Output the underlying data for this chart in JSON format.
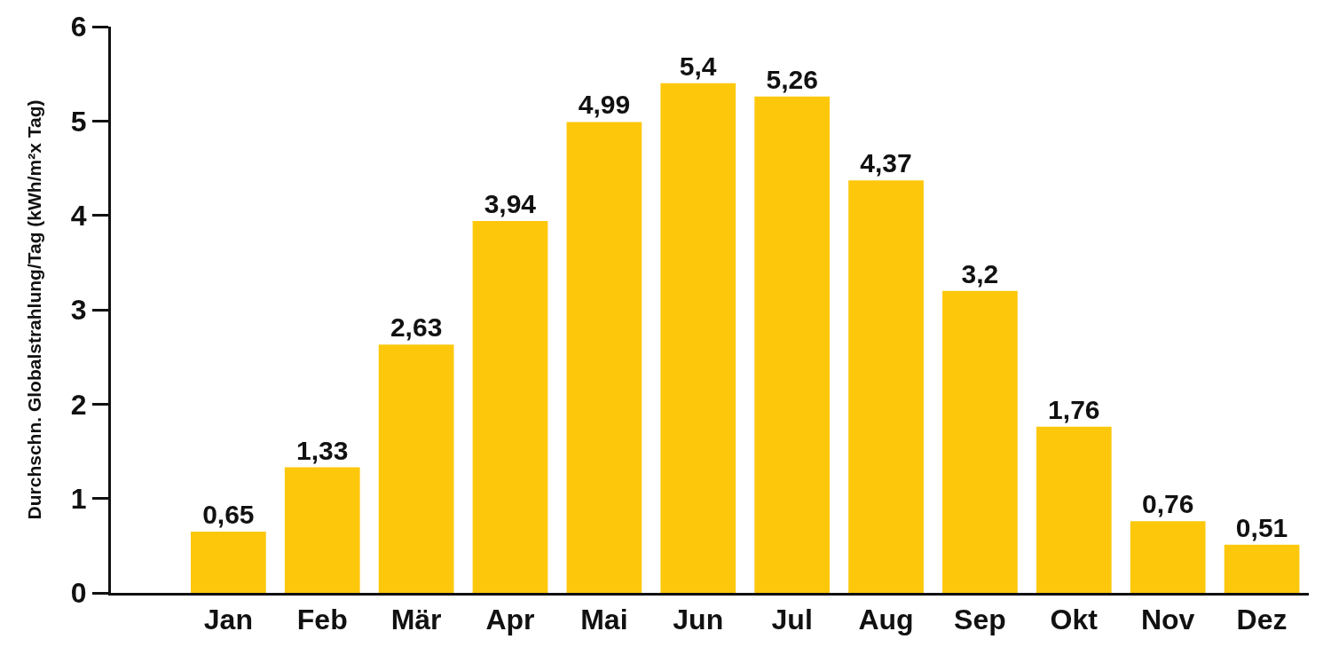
{
  "chart_data": {
    "type": "bar",
    "ylabel": "Durchschn. Globalstrahlung/Tag (kWh/m²x Tag)",
    "categories": [
      "Jan",
      "Feb",
      "Mär",
      "Apr",
      "Mai",
      "Jun",
      "Jul",
      "Aug",
      "Sep",
      "Okt",
      "Nov",
      "Dez"
    ],
    "values": [
      0.65,
      1.33,
      2.63,
      3.94,
      4.99,
      5.4,
      5.26,
      4.37,
      3.2,
      1.76,
      0.76,
      0.51
    ],
    "value_labels": [
      "0,65",
      "1,33",
      "2,63",
      "3,94",
      "4,99",
      "5,4",
      "5,26",
      "4,37",
      "3,2",
      "1,76",
      "0,76",
      "0,51"
    ],
    "color": "#fdc70c",
    "ylim": [
      0,
      6
    ],
    "yticks": [
      0,
      1,
      2,
      3,
      4,
      5,
      6
    ],
    "grid": false
  }
}
